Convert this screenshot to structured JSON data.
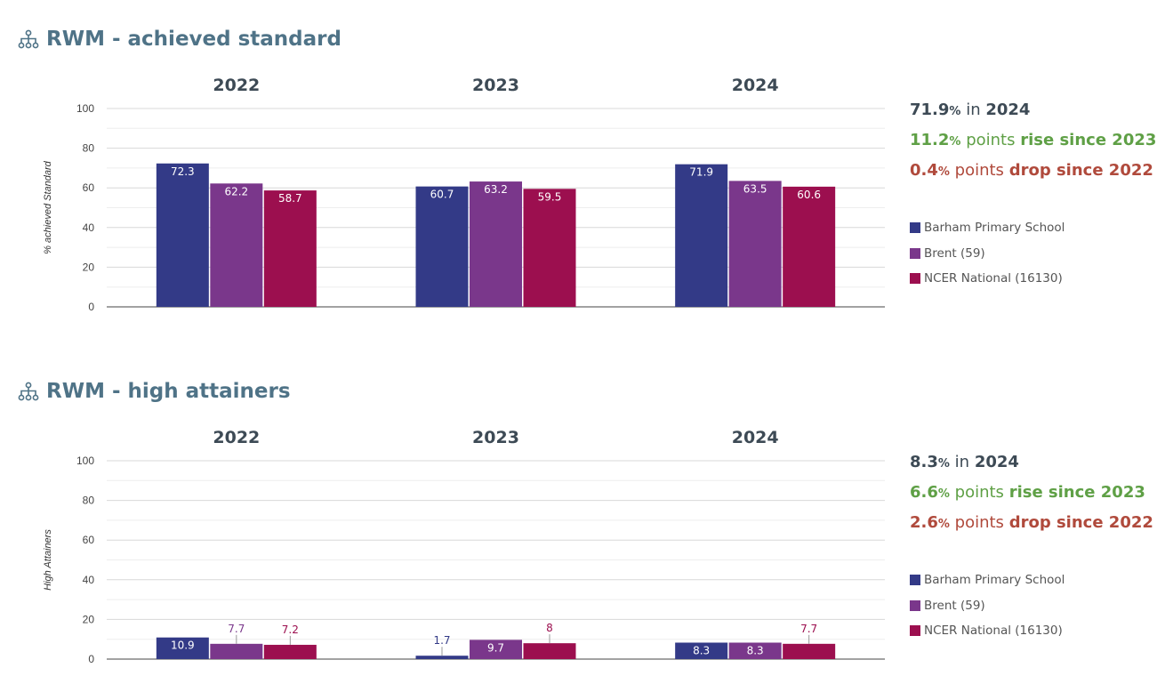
{
  "colors": {
    "school": "#333a87",
    "la": "#7a378b",
    "national": "#9c0f4f"
  },
  "icon": "hierarchy-icon",
  "charts": [
    {
      "title": "RWM - achieved standard",
      "summary": {
        "main_value": "71.9",
        "main_pct": "%",
        "main_word": "in",
        "main_year": "2024",
        "rise_value": "11.2",
        "rise_pct": "%",
        "rise_word": "points",
        "rise_text": "rise since 2023",
        "drop_value": "0.4",
        "drop_pct": "%",
        "drop_word": "points",
        "drop_text": "drop since 2022"
      },
      "legend": [
        "Barham Primary School",
        "Brent (59)",
        "NCER National (16130)"
      ]
    },
    {
      "title": "RWM - high attainers",
      "summary": {
        "main_value": "8.3",
        "main_pct": "%",
        "main_word": "in",
        "main_year": "2024",
        "rise_value": "6.6",
        "rise_pct": "%",
        "rise_word": "points",
        "rise_text": "rise since 2023",
        "drop_value": "2.6",
        "drop_pct": "%",
        "drop_word": "points",
        "drop_text": "drop since 2022"
      },
      "legend": [
        "Barham Primary School",
        "Brent (59)",
        "NCER National (16130)"
      ]
    }
  ],
  "chart_data": [
    {
      "type": "bar",
      "title": "RWM - achieved standard",
      "categories": [
        "2022",
        "2023",
        "2024"
      ],
      "ylabel": "% achieved Standard",
      "ylim": [
        0,
        100
      ],
      "yticks": [
        0,
        20,
        40,
        60,
        80,
        100
      ],
      "grid": true,
      "legend": "right",
      "series": [
        {
          "name": "Barham Primary School",
          "values": [
            72.3,
            60.7,
            71.9
          ]
        },
        {
          "name": "Brent (59)",
          "values": [
            62.2,
            63.2,
            63.5
          ]
        },
        {
          "name": "NCER National (16130)",
          "values": [
            58.7,
            59.5,
            60.6
          ]
        }
      ],
      "labels": [
        [
          "72.3",
          "62.2",
          "58.7"
        ],
        [
          "60.7",
          "63.2",
          "59.5"
        ],
        [
          "71.9",
          "63.5",
          "60.6"
        ]
      ]
    },
    {
      "type": "bar",
      "title": "RWM - high attainers",
      "categories": [
        "2022",
        "2023",
        "2024"
      ],
      "ylabel": "High Attainers",
      "ylim": [
        0,
        100
      ],
      "yticks": [
        0,
        20,
        40,
        60,
        80,
        100
      ],
      "grid": true,
      "legend": "right",
      "series": [
        {
          "name": "Barham Primary School",
          "values": [
            10.9,
            1.7,
            8.3
          ]
        },
        {
          "name": "Brent (59)",
          "values": [
            7.7,
            9.7,
            8.3
          ]
        },
        {
          "name": "NCER National (16130)",
          "values": [
            7.2,
            8,
            7.7
          ]
        }
      ],
      "labels": [
        [
          "10.9",
          "7.7",
          "7.2"
        ],
        [
          "1.7",
          "9.7",
          "8"
        ],
        [
          "8.3",
          "8.3",
          "7.7"
        ]
      ]
    }
  ]
}
